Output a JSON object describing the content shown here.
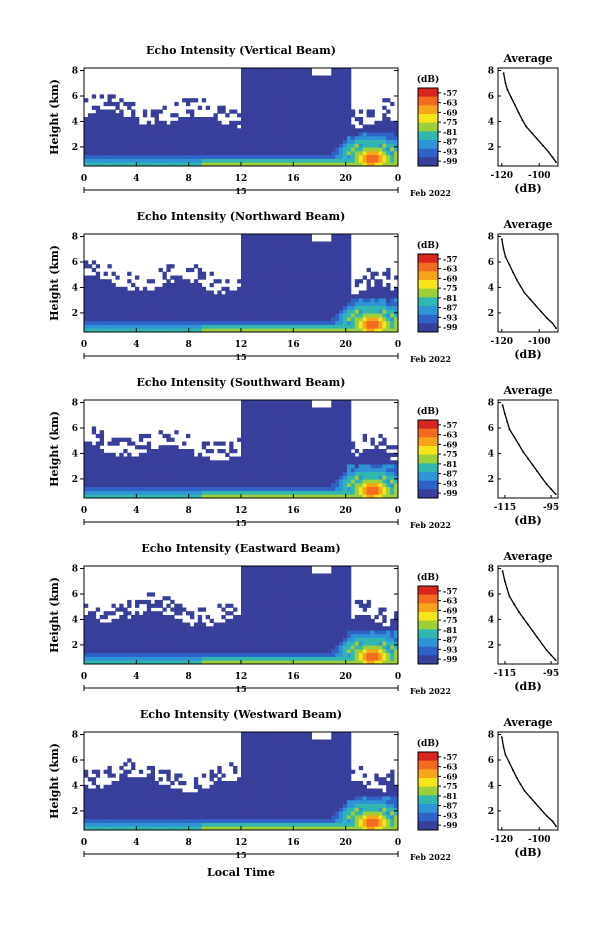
{
  "chart_data": [
    {
      "type": "heatmap",
      "title": "Echo Intensity (Vertical Beam)",
      "ylabel": "Height (km)",
      "x_ticks": [
        "0",
        "4",
        "8",
        "12",
        "16",
        "20",
        "0"
      ],
      "y_ticks": [
        "2",
        "4",
        "6",
        "8"
      ],
      "day_label": "15",
      "date_label": "Feb 2022",
      "xlim": [
        0,
        24
      ],
      "ylim": [
        0.5,
        8.2
      ],
      "colorbar": {
        "unit": "(dB)",
        "ticks": [
          "-57",
          "-63",
          "-69",
          "-75",
          "-81",
          "-87",
          "-93",
          "-99"
        ]
      },
      "profile": {
        "title": "Average",
        "xlabel": "(dB)",
        "x_ticks": [
          "-120",
          "-100"
        ],
        "y_ticks": [
          "2",
          "4",
          "6",
          "8"
        ],
        "xlim": [
          -122,
          -90
        ],
        "ylim": [
          0.5,
          8.2
        ],
        "x": [
          -119,
          -118,
          -117,
          -115,
          -113,
          -111,
          -109,
          -107,
          -104,
          -101,
          -98,
          -95,
          -93,
          -91
        ],
        "y": [
          7.8,
          7.0,
          6.5,
          5.9,
          5.3,
          4.7,
          4.1,
          3.6,
          3.1,
          2.6,
          2.1,
          1.6,
          1.2,
          0.8
        ]
      }
    },
    {
      "type": "heatmap",
      "title": "Echo Intensity (Northward Beam)",
      "ylabel": "Height (km)",
      "x_ticks": [
        "0",
        "4",
        "8",
        "12",
        "16",
        "20",
        "0"
      ],
      "y_ticks": [
        "2",
        "4",
        "6",
        "8"
      ],
      "day_label": "15",
      "date_label": "Feb 2022",
      "xlim": [
        0,
        24
      ],
      "ylim": [
        0.5,
        8.2
      ],
      "colorbar": {
        "unit": "(dB)",
        "ticks": [
          "-57",
          "-63",
          "-69",
          "-75",
          "-81",
          "-87",
          "-93",
          "-99"
        ]
      },
      "profile": {
        "title": "Average",
        "xlabel": "(dB)",
        "x_ticks": [
          "-120",
          "-100"
        ],
        "y_ticks": [
          "2",
          "4",
          "6",
          "8"
        ],
        "xlim": [
          -122,
          -90
        ],
        "ylim": [
          0.5,
          8.2
        ],
        "x": [
          -120,
          -119,
          -118,
          -116,
          -114,
          -112,
          -110,
          -108,
          -105,
          -102,
          -99,
          -96,
          -93,
          -91
        ],
        "y": [
          7.8,
          7.0,
          6.4,
          5.8,
          5.2,
          4.6,
          4.1,
          3.6,
          3.1,
          2.6,
          2.1,
          1.6,
          1.2,
          0.8
        ]
      }
    },
    {
      "type": "heatmap",
      "title": "Echo Intensity (Southward Beam)",
      "ylabel": "Height (km)",
      "x_ticks": [
        "0",
        "4",
        "8",
        "12",
        "16",
        "20",
        "0"
      ],
      "y_ticks": [
        "2",
        "4",
        "6",
        "8"
      ],
      "day_label": "15",
      "date_label": "Feb 2022",
      "xlim": [
        0,
        24
      ],
      "ylim": [
        0.5,
        8.2
      ],
      "colorbar": {
        "unit": "(dB)",
        "ticks": [
          "-57",
          "-63",
          "-69",
          "-75",
          "-81",
          "-87",
          "-93",
          "-99"
        ]
      },
      "profile": {
        "title": "Average",
        "xlabel": "(dB)",
        "x_ticks": [
          "-115",
          "-95"
        ],
        "y_ticks": [
          "2",
          "4",
          "6",
          "8"
        ],
        "xlim": [
          -118,
          -92
        ],
        "ylim": [
          0.5,
          8.2
        ],
        "x": [
          -116,
          -115,
          -114,
          -113,
          -111,
          -109,
          -107,
          -105,
          -103,
          -101,
          -99,
          -97,
          -95,
          -93
        ],
        "y": [
          7.8,
          7.1,
          6.5,
          5.9,
          5.3,
          4.7,
          4.1,
          3.6,
          3.1,
          2.6,
          2.1,
          1.6,
          1.2,
          0.8
        ]
      }
    },
    {
      "type": "heatmap",
      "title": "Echo Intensity (Eastward Beam)",
      "ylabel": "Height (km)",
      "x_ticks": [
        "0",
        "4",
        "8",
        "12",
        "16",
        "20",
        "0"
      ],
      "y_ticks": [
        "2",
        "4",
        "6",
        "8"
      ],
      "day_label": "15",
      "date_label": "Feb 2022",
      "xlim": [
        0,
        24
      ],
      "ylim": [
        0.5,
        8.2
      ],
      "colorbar": {
        "unit": "(dB)",
        "ticks": [
          "-57",
          "-63",
          "-69",
          "-75",
          "-81",
          "-87",
          "-93",
          "-99"
        ]
      },
      "profile": {
        "title": "Average",
        "xlabel": "(dB)",
        "x_ticks": [
          "-115",
          "-95"
        ],
        "y_ticks": [
          "2",
          "4",
          "6",
          "8"
        ],
        "xlim": [
          -118,
          -92
        ],
        "ylim": [
          0.5,
          8.2
        ],
        "x": [
          -116,
          -115,
          -114,
          -113,
          -111,
          -109,
          -107,
          -105,
          -103,
          -101,
          -99,
          -97,
          -95,
          -93
        ],
        "y": [
          7.8,
          7.0,
          6.4,
          5.8,
          5.2,
          4.6,
          4.1,
          3.6,
          3.1,
          2.6,
          2.1,
          1.6,
          1.2,
          0.8
        ]
      }
    },
    {
      "type": "heatmap",
      "title": "Echo Intensity (Westward Beam)",
      "ylabel": "Height (km)",
      "xlabel": "Local Time",
      "x_ticks": [
        "0",
        "4",
        "8",
        "12",
        "16",
        "20",
        "0"
      ],
      "y_ticks": [
        "2",
        "4",
        "6",
        "8"
      ],
      "day_label": "15",
      "date_label": "Feb 2022",
      "xlim": [
        0,
        24
      ],
      "ylim": [
        0.5,
        8.2
      ],
      "colorbar": {
        "unit": "(dB)",
        "ticks": [
          "-57",
          "-63",
          "-69",
          "-75",
          "-81",
          "-87",
          "-93",
          "-99"
        ]
      },
      "profile": {
        "title": "Average",
        "xlabel": "(dB)",
        "x_ticks": [
          "-120",
          "-100"
        ],
        "y_ticks": [
          "2",
          "4",
          "6",
          "8"
        ],
        "xlim": [
          -122,
          -90
        ],
        "ylim": [
          0.5,
          8.2
        ],
        "x": [
          -120,
          -119,
          -118,
          -116,
          -114,
          -112,
          -110,
          -108,
          -105,
          -102,
          -99,
          -96,
          -93,
          -91
        ],
        "y": [
          7.8,
          7.0,
          6.4,
          5.8,
          5.2,
          4.6,
          4.1,
          3.6,
          3.1,
          2.6,
          2.1,
          1.6,
          1.2,
          0.8
        ]
      }
    }
  ],
  "colors": {
    "colorbar": [
      "#d7261e",
      "#f26b21",
      "#f7a41d",
      "#f5e51a",
      "#9dcf3a",
      "#31b7b0",
      "#2f94d6",
      "#2f62c6",
      "#383f9a"
    ],
    "background_echo": "#3a3f87"
  }
}
